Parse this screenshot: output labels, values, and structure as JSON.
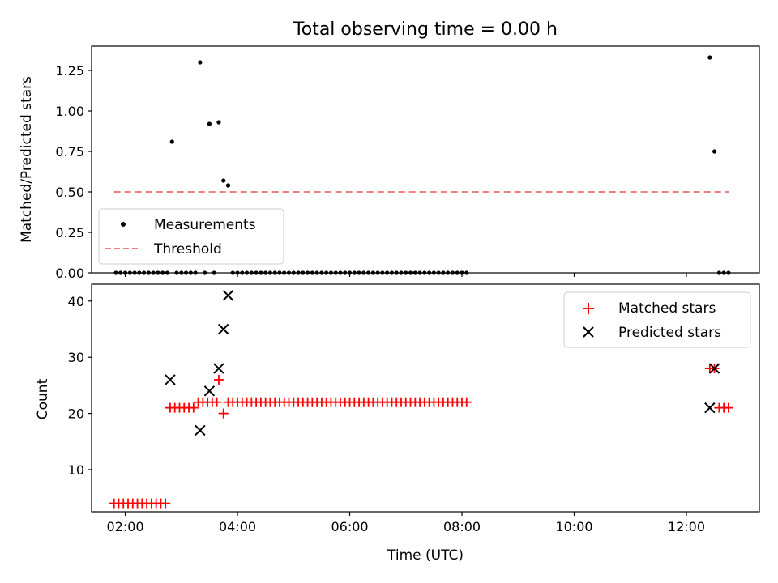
{
  "chart_data": [
    {
      "type": "scatter",
      "title": "Total observing time = 0.00 h",
      "xlabel": "",
      "ylabel": "Matched/Predicted stars",
      "ylim": [
        0.0,
        1.4
      ],
      "xlim": [
        "01:24",
        "13:18"
      ],
      "yticks": [
        "0.00",
        "0.25",
        "0.50",
        "0.75",
        "1.00",
        "1.25"
      ],
      "legend_position": "lower-left",
      "series": [
        {
          "name": "Measurements",
          "marker": "dot",
          "color": "#000000",
          "points": [
            [
              "01:50",
              0.0
            ],
            [
              "01:55",
              0.0
            ],
            [
              "02:00",
              0.0
            ],
            [
              "02:05",
              0.0
            ],
            [
              "02:10",
              0.0
            ],
            [
              "02:15",
              0.0
            ],
            [
              "02:20",
              0.0
            ],
            [
              "02:25",
              0.0
            ],
            [
              "02:30",
              0.0
            ],
            [
              "02:35",
              0.0
            ],
            [
              "02:40",
              0.0
            ],
            [
              "02:45",
              0.0
            ],
            [
              "02:50",
              0.81
            ],
            [
              "02:55",
              0.0
            ],
            [
              "03:00",
              0.0
            ],
            [
              "03:05",
              0.0
            ],
            [
              "03:10",
              0.0
            ],
            [
              "03:15",
              0.0
            ],
            [
              "03:20",
              1.3
            ],
            [
              "03:25",
              0.0
            ],
            [
              "03:30",
              0.92
            ],
            [
              "03:35",
              0.0
            ],
            [
              "03:40",
              0.93
            ],
            [
              "03:45",
              0.57
            ],
            [
              "03:50",
              0.54
            ],
            [
              "03:55",
              0.0
            ],
            [
              "04:00",
              0.0
            ],
            [
              "04:05",
              0.0
            ],
            [
              "04:10",
              0.0
            ],
            [
              "04:15",
              0.0
            ],
            [
              "04:20",
              0.0
            ],
            [
              "04:25",
              0.0
            ],
            [
              "04:30",
              0.0
            ],
            [
              "04:35",
              0.0
            ],
            [
              "04:40",
              0.0
            ],
            [
              "04:45",
              0.0
            ],
            [
              "04:50",
              0.0
            ],
            [
              "04:55",
              0.0
            ],
            [
              "05:00",
              0.0
            ],
            [
              "05:05",
              0.0
            ],
            [
              "05:10",
              0.0
            ],
            [
              "05:15",
              0.0
            ],
            [
              "05:20",
              0.0
            ],
            [
              "05:25",
              0.0
            ],
            [
              "05:30",
              0.0
            ],
            [
              "05:35",
              0.0
            ],
            [
              "05:40",
              0.0
            ],
            [
              "05:45",
              0.0
            ],
            [
              "05:50",
              0.0
            ],
            [
              "05:55",
              0.0
            ],
            [
              "06:00",
              0.0
            ],
            [
              "06:05",
              0.0
            ],
            [
              "06:10",
              0.0
            ],
            [
              "06:15",
              0.0
            ],
            [
              "06:20",
              0.0
            ],
            [
              "06:25",
              0.0
            ],
            [
              "06:30",
              0.0
            ],
            [
              "06:35",
              0.0
            ],
            [
              "06:40",
              0.0
            ],
            [
              "06:45",
              0.0
            ],
            [
              "06:50",
              0.0
            ],
            [
              "06:55",
              0.0
            ],
            [
              "07:00",
              0.0
            ],
            [
              "07:05",
              0.0
            ],
            [
              "07:10",
              0.0
            ],
            [
              "07:15",
              0.0
            ],
            [
              "07:20",
              0.0
            ],
            [
              "07:25",
              0.0
            ],
            [
              "07:30",
              0.0
            ],
            [
              "07:35",
              0.0
            ],
            [
              "07:40",
              0.0
            ],
            [
              "07:45",
              0.0
            ],
            [
              "07:50",
              0.0
            ],
            [
              "07:55",
              0.0
            ],
            [
              "08:00",
              0.0
            ],
            [
              "08:05",
              0.0
            ],
            [
              "12:25",
              1.33
            ],
            [
              "12:30",
              0.75
            ],
            [
              "12:35",
              0.0
            ],
            [
              "12:40",
              0.0
            ],
            [
              "12:45",
              0.0
            ]
          ]
        },
        {
          "name": "Threshold",
          "type": "line",
          "style": "dashed",
          "color": "#f08080",
          "points": [
            [
              "01:48",
              0.5
            ],
            [
              "12:45",
              0.5
            ]
          ]
        }
      ]
    },
    {
      "type": "scatter",
      "title": "",
      "xlabel": "Time (UTC)",
      "ylabel": "Count",
      "ylim": [
        2.5,
        43.0
      ],
      "xlim": [
        "01:24",
        "13:18"
      ],
      "yticks": [
        "10",
        "20",
        "30",
        "40"
      ],
      "xticks": [
        "02:00",
        "04:00",
        "06:00",
        "08:00",
        "10:00",
        "12:00"
      ],
      "legend_position": "top-right",
      "series": [
        {
          "name": "Matched stars",
          "marker": "plus",
          "color": "#ff0000",
          "points": [
            [
              "01:48",
              4
            ],
            [
              "01:53",
              4
            ],
            [
              "01:58",
              4
            ],
            [
              "02:03",
              4
            ],
            [
              "02:08",
              4
            ],
            [
              "02:13",
              4
            ],
            [
              "02:18",
              4
            ],
            [
              "02:23",
              4
            ],
            [
              "02:28",
              4
            ],
            [
              "02:33",
              4
            ],
            [
              "02:38",
              4
            ],
            [
              "02:43",
              4
            ],
            [
              "02:48",
              21
            ],
            [
              "02:53",
              21
            ],
            [
              "02:58",
              21
            ],
            [
              "03:03",
              21
            ],
            [
              "03:08",
              21
            ],
            [
              "03:13",
              21
            ],
            [
              "03:18",
              22
            ],
            [
              "03:23",
              22
            ],
            [
              "03:28",
              22
            ],
            [
              "03:33",
              22
            ],
            [
              "03:38",
              22
            ],
            [
              "03:40",
              26
            ],
            [
              "03:45",
              20
            ],
            [
              "03:50",
              22
            ],
            [
              "03:55",
              22
            ],
            [
              "04:00",
              22
            ],
            [
              "04:05",
              22
            ],
            [
              "04:10",
              22
            ],
            [
              "04:15",
              22
            ],
            [
              "04:20",
              22
            ],
            [
              "04:25",
              22
            ],
            [
              "04:30",
              22
            ],
            [
              "04:35",
              22
            ],
            [
              "04:40",
              22
            ],
            [
              "04:45",
              22
            ],
            [
              "04:50",
              22
            ],
            [
              "04:55",
              22
            ],
            [
              "05:00",
              22
            ],
            [
              "05:05",
              22
            ],
            [
              "05:10",
              22
            ],
            [
              "05:15",
              22
            ],
            [
              "05:20",
              22
            ],
            [
              "05:25",
              22
            ],
            [
              "05:30",
              22
            ],
            [
              "05:35",
              22
            ],
            [
              "05:40",
              22
            ],
            [
              "05:45",
              22
            ],
            [
              "05:50",
              22
            ],
            [
              "05:55",
              22
            ],
            [
              "06:00",
              22
            ],
            [
              "06:05",
              22
            ],
            [
              "06:10",
              22
            ],
            [
              "06:15",
              22
            ],
            [
              "06:20",
              22
            ],
            [
              "06:25",
              22
            ],
            [
              "06:30",
              22
            ],
            [
              "06:35",
              22
            ],
            [
              "06:40",
              22
            ],
            [
              "06:45",
              22
            ],
            [
              "06:50",
              22
            ],
            [
              "06:55",
              22
            ],
            [
              "07:00",
              22
            ],
            [
              "07:05",
              22
            ],
            [
              "07:10",
              22
            ],
            [
              "07:15",
              22
            ],
            [
              "07:20",
              22
            ],
            [
              "07:25",
              22
            ],
            [
              "07:30",
              22
            ],
            [
              "07:35",
              22
            ],
            [
              "07:40",
              22
            ],
            [
              "07:45",
              22
            ],
            [
              "07:50",
              22
            ],
            [
              "07:55",
              22
            ],
            [
              "08:00",
              22
            ],
            [
              "08:05",
              22
            ],
            [
              "12:25",
              28
            ],
            [
              "12:30",
              28
            ],
            [
              "12:35",
              21
            ],
            [
              "12:40",
              21
            ],
            [
              "12:45",
              21
            ]
          ]
        },
        {
          "name": "Predicted stars",
          "marker": "x",
          "color": "#000000",
          "points": [
            [
              "02:48",
              26
            ],
            [
              "03:20",
              17
            ],
            [
              "03:30",
              24
            ],
            [
              "03:40",
              28
            ],
            [
              "03:45",
              35
            ],
            [
              "03:50",
              41
            ],
            [
              "12:25",
              21
            ],
            [
              "12:30",
              28
            ]
          ]
        }
      ]
    }
  ]
}
